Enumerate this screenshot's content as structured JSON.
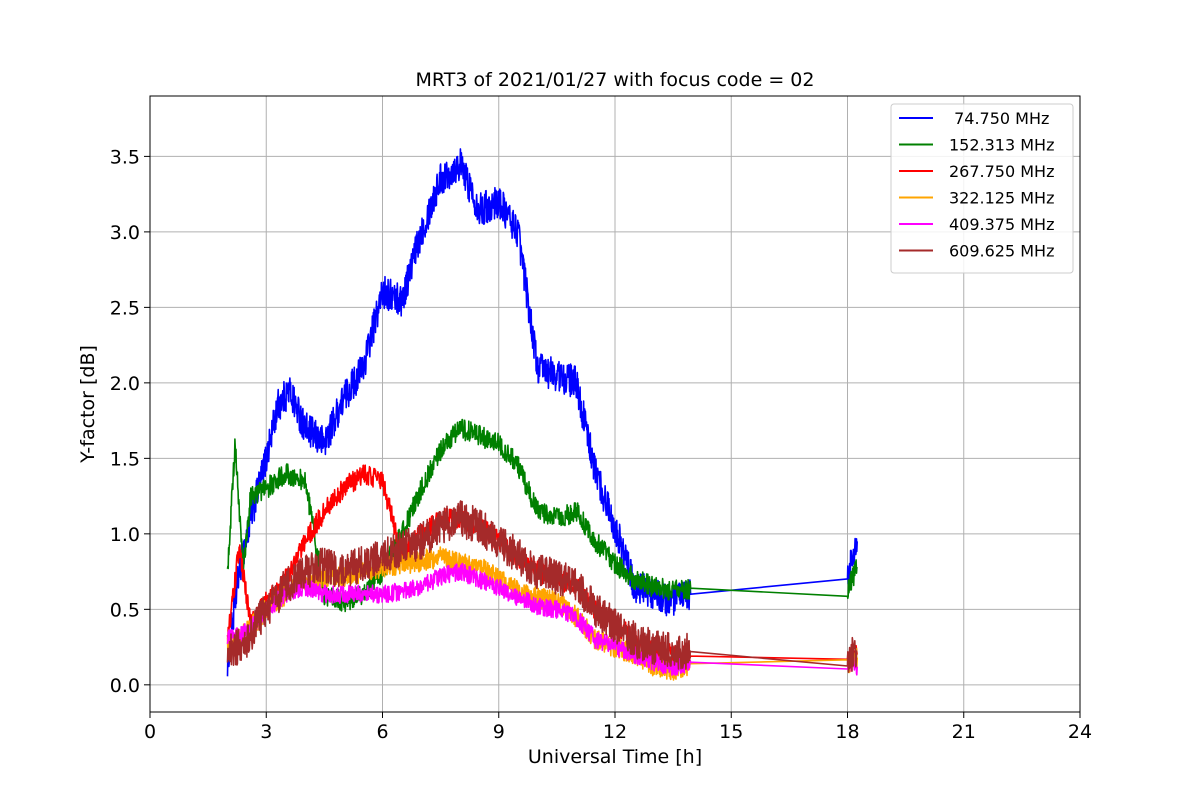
{
  "chart_data": {
    "type": "line",
    "title": "MRT3 of 2021/01/27 with focus code = 02",
    "xlabel": "Universal Time [h]",
    "ylabel": "Y-factor [dB]",
    "xlim": [
      0,
      24
    ],
    "ylim": [
      -0.18,
      3.9
    ],
    "xticks": [
      0,
      3,
      6,
      9,
      12,
      15,
      18,
      21,
      24
    ],
    "xtick_labels": [
      "0",
      "3",
      "6",
      "9",
      "12",
      "15",
      "18",
      "21",
      "24"
    ],
    "yticks": [
      0.0,
      0.5,
      1.0,
      1.5,
      2.0,
      2.5,
      3.0,
      3.5
    ],
    "ytick_labels": [
      "0.0",
      "0.5",
      "1.0",
      "1.5",
      "2.0",
      "2.5",
      "3.0",
      "3.5"
    ],
    "grid": true,
    "legend_position": "top-right",
    "series": [
      {
        "name": " 74.750 MHz",
        "color": "#0000ff",
        "noise": 0.11,
        "x": [
          2.0,
          2.3,
          2.6,
          3.0,
          3.3,
          3.6,
          4.0,
          4.5,
          5.0,
          5.5,
          6.0,
          6.5,
          7.0,
          7.5,
          8.0,
          8.5,
          9.0,
          9.5,
          10.0,
          10.5,
          11.0,
          11.5,
          12.0,
          12.5,
          13.0,
          13.5,
          13.95,
          18.0,
          18.25
        ],
        "y": [
          0.15,
          0.75,
          1.1,
          1.5,
          1.85,
          1.95,
          1.7,
          1.6,
          1.9,
          2.1,
          2.6,
          2.55,
          3.0,
          3.35,
          3.45,
          3.15,
          3.2,
          3.0,
          2.1,
          2.05,
          2.0,
          1.4,
          1.05,
          0.65,
          0.6,
          0.55,
          0.6,
          0.72,
          0.95
        ]
      },
      {
        "name": "152.313 MHz",
        "color": "#008000",
        "noise": 0.07,
        "x": [
          2.0,
          2.2,
          2.4,
          2.6,
          3.0,
          3.5,
          4.0,
          4.5,
          5.0,
          5.5,
          6.0,
          6.5,
          7.0,
          7.5,
          8.0,
          8.5,
          9.0,
          9.5,
          10.0,
          10.5,
          11.0,
          11.5,
          12.0,
          12.5,
          13.0,
          13.5,
          13.95,
          18.0,
          18.25
        ],
        "y": [
          0.75,
          1.6,
          0.75,
          1.25,
          1.3,
          1.4,
          1.35,
          0.6,
          0.55,
          0.6,
          0.75,
          1.0,
          1.3,
          1.55,
          1.7,
          1.65,
          1.6,
          1.45,
          1.15,
          1.1,
          1.15,
          0.95,
          0.8,
          0.7,
          0.65,
          0.62,
          0.64,
          0.63,
          0.78
        ]
      },
      {
        "name": "267.750 MHz",
        "color": "#ff0000",
        "noise": 0.07,
        "x": [
          2.0,
          2.3,
          2.6,
          3.0,
          3.5,
          4.0,
          4.5,
          5.0,
          5.5,
          6.0,
          6.5,
          7.0,
          7.5,
          8.0,
          8.5,
          9.0,
          9.5,
          10.0,
          10.5,
          11.0,
          11.5,
          12.0,
          12.5,
          13.0,
          13.5,
          13.95,
          18.0,
          18.25
        ],
        "y": [
          0.3,
          0.9,
          0.4,
          0.55,
          0.7,
          0.95,
          1.15,
          1.3,
          1.4,
          1.35,
          0.85,
          1.0,
          1.1,
          1.1,
          1.05,
          0.95,
          0.85,
          0.75,
          0.7,
          0.65,
          0.5,
          0.4,
          0.3,
          0.22,
          0.2,
          0.19,
          0.18,
          0.2
        ]
      },
      {
        "name": "322.125 MHz",
        "color": "#ffa500",
        "noise": 0.07,
        "x": [
          2.0,
          2.5,
          3.0,
          3.5,
          4.0,
          4.5,
          5.0,
          5.5,
          6.0,
          6.5,
          7.0,
          7.5,
          8.0,
          8.5,
          9.0,
          9.5,
          10.0,
          10.5,
          11.0,
          11.5,
          12.0,
          12.5,
          13.0,
          13.5,
          13.95,
          18.0,
          18.25
        ],
        "y": [
          0.25,
          0.35,
          0.5,
          0.6,
          0.7,
          0.7,
          0.72,
          0.75,
          0.78,
          0.8,
          0.82,
          0.85,
          0.8,
          0.78,
          0.7,
          0.62,
          0.58,
          0.55,
          0.45,
          0.3,
          0.25,
          0.2,
          0.12,
          0.1,
          0.14,
          0.14,
          0.18
        ]
      },
      {
        "name": "409.375 MHz",
        "color": "#ff00ff",
        "noise": 0.06,
        "x": [
          2.0,
          2.5,
          3.0,
          3.5,
          4.0,
          4.5,
          5.0,
          5.5,
          6.0,
          6.5,
          7.0,
          7.5,
          8.0,
          8.5,
          9.0,
          9.5,
          10.0,
          10.5,
          11.0,
          11.5,
          12.0,
          12.5,
          13.0,
          13.5,
          13.95,
          18.0,
          18.25
        ],
        "y": [
          0.3,
          0.35,
          0.5,
          0.6,
          0.65,
          0.6,
          0.6,
          0.6,
          0.6,
          0.62,
          0.65,
          0.72,
          0.75,
          0.7,
          0.65,
          0.58,
          0.52,
          0.5,
          0.45,
          0.3,
          0.25,
          0.2,
          0.15,
          0.12,
          0.15,
          0.15,
          0.12
        ]
      },
      {
        "name": "609.625 MHz",
        "color": "#a52a2a",
        "noise": 0.12,
        "x": [
          2.0,
          2.5,
          3.0,
          3.5,
          4.0,
          4.5,
          5.0,
          5.5,
          6.0,
          6.5,
          7.0,
          7.5,
          8.0,
          8.5,
          9.0,
          9.5,
          10.0,
          10.5,
          11.0,
          11.5,
          12.0,
          12.5,
          13.0,
          13.5,
          13.95,
          18.0,
          18.25
        ],
        "y": [
          0.2,
          0.3,
          0.5,
          0.65,
          0.75,
          0.8,
          0.75,
          0.8,
          0.85,
          0.9,
          0.95,
          1.05,
          1.1,
          1.05,
          0.95,
          0.85,
          0.75,
          0.72,
          0.65,
          0.5,
          0.4,
          0.3,
          0.25,
          0.22,
          0.22,
          0.19,
          0.22
        ]
      }
    ]
  }
}
